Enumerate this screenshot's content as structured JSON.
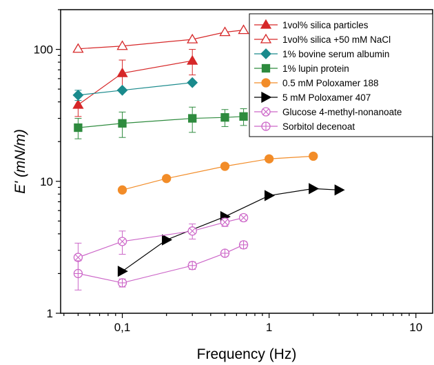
{
  "chart_data": {
    "type": "scatter",
    "xlabel": "Frequency (Hz)",
    "ylabel": "E' (mN/m)",
    "x_scale": "log",
    "y_scale": "log",
    "xlim": [
      0.038,
      13
    ],
    "ylim": [
      1,
      200
    ],
    "x_ticks": [
      {
        "value": 0.1,
        "label": "0,1"
      },
      {
        "value": 1,
        "label": "1"
      },
      {
        "value": 10,
        "label": "10"
      }
    ],
    "y_ticks": [
      {
        "value": 1,
        "label": "1"
      },
      {
        "value": 10,
        "label": "10"
      },
      {
        "value": 100,
        "label": "100"
      }
    ],
    "legend_position": "top-right",
    "series": [
      {
        "name": "1vol% silica particles",
        "marker": "triangle-up",
        "filled": true,
        "color": "#d62728",
        "x": [
          0.05,
          0.1,
          0.3
        ],
        "y": [
          38,
          66,
          82
        ],
        "err": [
          7,
          17,
          18
        ]
      },
      {
        "name": "1vol% silica +50 mM NaCl",
        "marker": "triangle-up",
        "filled": false,
        "color": "#d62728",
        "x": [
          0.05,
          0.1,
          0.3,
          0.5,
          0.67
        ],
        "y": [
          101,
          106,
          119,
          135,
          140
        ],
        "err": [
          0,
          0,
          0,
          0,
          0
        ]
      },
      {
        "name": "1% bovine serum albumin",
        "marker": "diamond",
        "filled": true,
        "color": "#1a8a8c",
        "x": [
          0.05,
          0.1,
          0.3
        ],
        "y": [
          45,
          49,
          56
        ],
        "err": [
          4,
          0,
          0
        ]
      },
      {
        "name": "1% lupin protein",
        "marker": "square",
        "filled": true,
        "color": "#2e8b3e",
        "x": [
          0.05,
          0.1,
          0.3,
          0.5,
          0.67
        ],
        "y": [
          25.5,
          27.5,
          30,
          30.5,
          31
        ],
        "err": [
          4.5,
          6,
          6.5,
          4.5,
          4.5
        ]
      },
      {
        "name": "0.5 mM Poloxamer 188",
        "marker": "circle",
        "filled": true,
        "color": "#f28c28",
        "x": [
          0.1,
          0.2,
          0.5,
          1,
          2
        ],
        "y": [
          8.6,
          10.5,
          13,
          14.8,
          15.5
        ],
        "err": [
          0,
          0,
          0,
          0,
          0
        ]
      },
      {
        "name": "5 mM Poloxamer 407",
        "marker": "triangle-right",
        "filled": true,
        "color": "#000000",
        "x": [
          0.1,
          0.2,
          0.5,
          1,
          2,
          3
        ],
        "y": [
          2.08,
          3.6,
          5.4,
          7.8,
          8.8,
          8.6
        ],
        "err": [
          0,
          0,
          0,
          0,
          0,
          0
        ]
      },
      {
        "name": "Glucose 4-methyl-nonanoate",
        "marker": "circle-x",
        "filled": false,
        "color": "#cc66c8",
        "x": [
          0.05,
          0.1,
          0.3,
          0.5,
          0.67
        ],
        "y": [
          2.65,
          3.5,
          4.2,
          4.9,
          5.3
        ],
        "err": [
          0.75,
          0.7,
          0.55,
          0.35,
          0.3
        ]
      },
      {
        "name": "Sorbitol decenoat",
        "marker": "circle-plus",
        "filled": false,
        "color": "#cc66c8",
        "x": [
          0.05,
          0.1,
          0.3,
          0.5,
          0.67
        ],
        "y": [
          2.0,
          1.7,
          2.3,
          2.85,
          3.3
        ],
        "err": [
          0.5,
          0.12,
          0.15,
          0.15,
          0.2
        ]
      }
    ]
  }
}
